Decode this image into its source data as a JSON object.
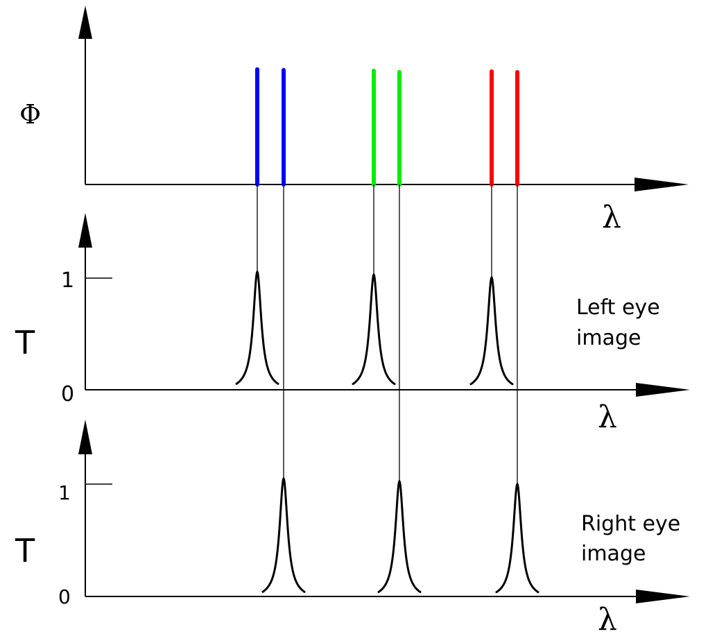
{
  "top_panel": {
    "y_label": "Φ",
    "x_label": "λ",
    "spectral_lines": [
      {
        "color": "#0000ff"
      },
      {
        "color": "#0000ff"
      },
      {
        "color": "#00ee00"
      },
      {
        "color": "#00ee00"
      },
      {
        "color": "#ff0000"
      },
      {
        "color": "#ff0000"
      }
    ]
  },
  "left_panel": {
    "y_label": "T",
    "x_label": "λ",
    "tick_one": "1",
    "tick_zero": "0",
    "caption_line1": "Left eye",
    "caption_line2": "image"
  },
  "right_panel": {
    "y_label": "T",
    "x_label": "λ",
    "tick_one": "1",
    "tick_zero": "0",
    "caption_line1": "Right eye",
    "caption_line2": "image"
  }
}
